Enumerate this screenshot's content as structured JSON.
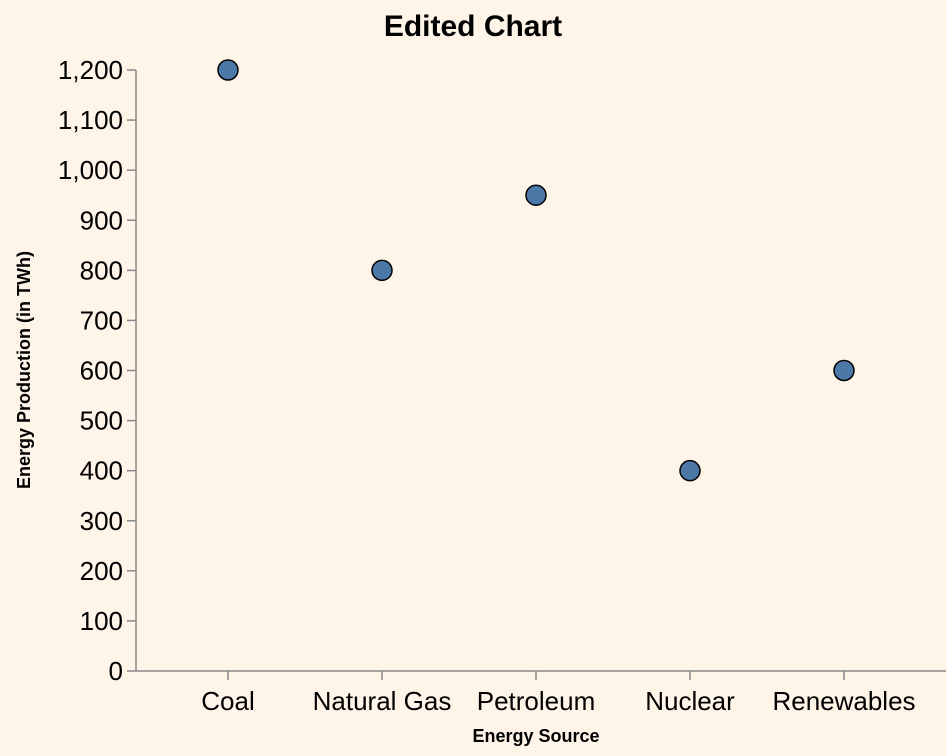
{
  "chart_data": {
    "type": "scatter",
    "title": "Edited Chart",
    "xlabel": "Energy Source",
    "ylabel": "Energy Production (in TWh)",
    "categories": [
      "Coal",
      "Natural Gas",
      "Petroleum",
      "Nuclear",
      "Renewables"
    ],
    "values": [
      1200,
      800,
      950,
      400,
      600
    ],
    "ylim": [
      0,
      1200
    ],
    "yticks": [
      0,
      100,
      200,
      300,
      400,
      500,
      600,
      700,
      800,
      900,
      1000,
      1100,
      1200
    ],
    "ytick_labels": [
      "0",
      "100",
      "200",
      "300",
      "400",
      "500",
      "600",
      "700",
      "800",
      "900",
      "1,000",
      "1,100",
      "1,200"
    ],
    "grid": false,
    "legend": "none",
    "colors": {
      "point_fill": "#4c78a8",
      "point_stroke": "#000000",
      "background": "#fef4e7",
      "axis": "#888888"
    }
  }
}
